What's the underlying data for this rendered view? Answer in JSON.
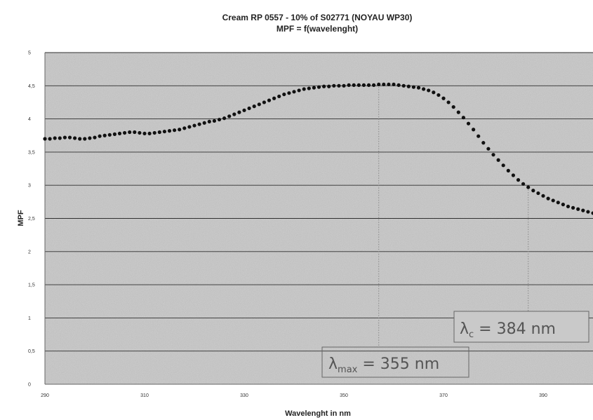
{
  "chart_data": {
    "type": "scatter",
    "title": "Cream RP 0557  -  10% of S02771 (NOYAU WP30)",
    "subtitle": "MPF = f(wavelenght)",
    "xlabel": "Wavelenght in nm",
    "ylabel": "MPF",
    "xlim": [
      290,
      400
    ],
    "ylim": [
      0,
      5
    ],
    "x_ticks": [
      "290",
      "310",
      "330",
      "350",
      "370",
      "390"
    ],
    "y_ticks": [
      "0",
      "0,5",
      "1",
      "1,5",
      "2",
      "2,5",
      "3",
      "3,5",
      "4",
      "4,5",
      "5"
    ],
    "grid": "horizontal",
    "marker_color": "#111111",
    "plot_background": "#c9c9c9",
    "series": [
      {
        "x": [
          290,
          291,
          292,
          293,
          294,
          295,
          296,
          297,
          298,
          299,
          300,
          301,
          302,
          303,
          304,
          305,
          306,
          307,
          308,
          309,
          310,
          311,
          312,
          313,
          314,
          315,
          316,
          317,
          318,
          319,
          320,
          321,
          322,
          323,
          324,
          325,
          326,
          327,
          328,
          329,
          330,
          331,
          332,
          333,
          334,
          335,
          336,
          337,
          338,
          339,
          340,
          341,
          342,
          343,
          344,
          345,
          346,
          347,
          348,
          349,
          350,
          351,
          352,
          353,
          354,
          355,
          356,
          357,
          358,
          359,
          360,
          361,
          362,
          363,
          364,
          365,
          366,
          367,
          368,
          369,
          370,
          371,
          372,
          373,
          374,
          375,
          376,
          377,
          378,
          379,
          380,
          381,
          382,
          383,
          384,
          385,
          386,
          387,
          388,
          389,
          390,
          391,
          392,
          393,
          394,
          395,
          396,
          397,
          398,
          399,
          400
        ],
        "y": [
          3.7,
          3.7,
          3.71,
          3.71,
          3.72,
          3.72,
          3.71,
          3.7,
          3.7,
          3.71,
          3.72,
          3.74,
          3.75,
          3.76,
          3.77,
          3.78,
          3.79,
          3.8,
          3.8,
          3.79,
          3.78,
          3.78,
          3.79,
          3.8,
          3.81,
          3.82,
          3.83,
          3.84,
          3.86,
          3.88,
          3.9,
          3.92,
          3.94,
          3.96,
          3.97,
          3.99,
          4.01,
          4.04,
          4.07,
          4.1,
          4.13,
          4.16,
          4.19,
          4.22,
          4.25,
          4.28,
          4.31,
          4.34,
          4.37,
          4.39,
          4.41,
          4.43,
          4.45,
          4.46,
          4.47,
          4.48,
          4.49,
          4.49,
          4.5,
          4.5,
          4.5,
          4.51,
          4.51,
          4.51,
          4.51,
          4.51,
          4.51,
          4.52,
          4.52,
          4.52,
          4.52,
          4.51,
          4.5,
          4.49,
          4.48,
          4.47,
          4.45,
          4.43,
          4.4,
          4.36,
          4.31,
          4.25,
          4.18,
          4.1,
          4.02,
          3.93,
          3.84,
          3.74,
          3.64,
          3.55,
          3.46,
          3.38,
          3.3,
          3.22,
          3.15,
          3.08,
          3.02,
          2.97,
          2.92,
          2.88,
          2.84,
          2.8,
          2.77,
          2.74,
          2.71,
          2.68,
          2.66,
          2.64,
          2.62,
          2.6,
          2.58
        ]
      }
    ],
    "annotations": [
      {
        "x": 357,
        "label_main": "λ",
        "label_sub": "max",
        "label_rest": " = 355 nm"
      },
      {
        "x": 387,
        "label_main": "λ",
        "label_sub": "c",
        "label_rest": " = 384 nm"
      }
    ]
  }
}
